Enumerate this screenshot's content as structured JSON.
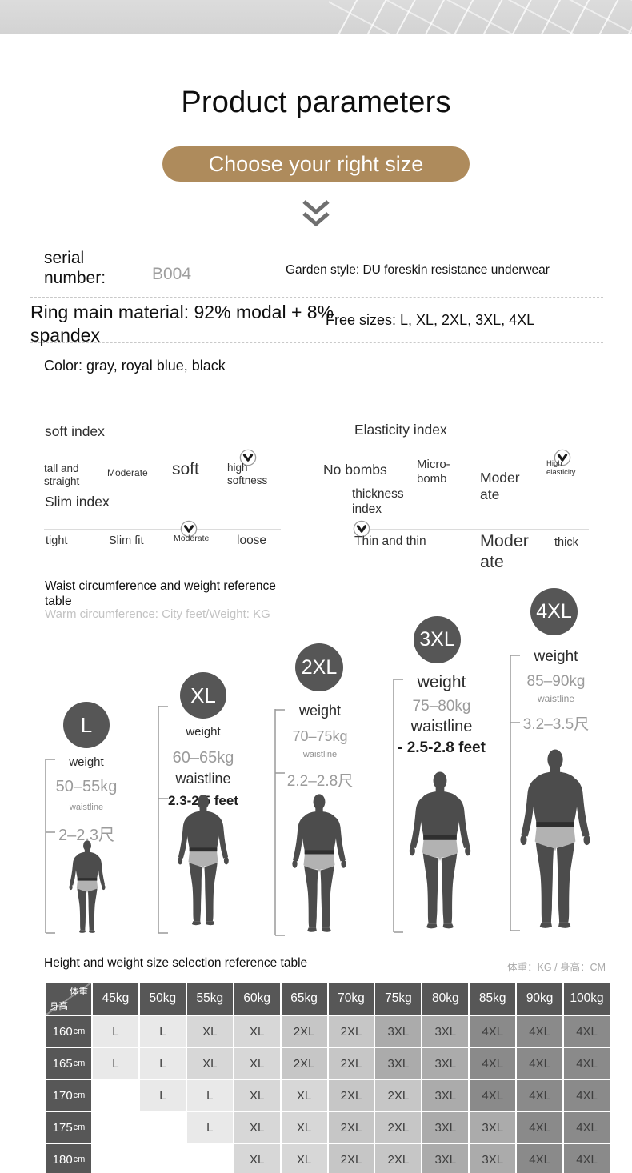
{
  "header": {
    "title": "Product parameters",
    "cta": "Choose your right size"
  },
  "specs": {
    "serial_label": "serial number:",
    "serial_value": "B004",
    "garden_style": "Garden style: DU foreskin resistance underwear",
    "material": "Ring main material: 92% modal + 8% spandex",
    "free_sizes": "Free sizes: L, XL, 2XL, 3XL, 4XL",
    "color": "Color: gray, royal blue, black"
  },
  "indexes": {
    "soft": {
      "title": "soft index",
      "labels": [
        "tall and straight",
        "Moderate",
        "soft",
        "high softness"
      ],
      "marker_index": 3,
      "marker_value": "high softness"
    },
    "elasticity": {
      "title": "Elasticity index",
      "labels": [
        "No bombs",
        "Micro-bomb",
        "Moderate",
        "High elasticity"
      ],
      "marker_index": 3,
      "marker_value": "High elasticity"
    },
    "slim": {
      "title": "Slim index",
      "labels": [
        "tight",
        "Slim fit",
        "Moderate",
        "loose"
      ],
      "marker_index": 2,
      "marker_value": "Moderate"
    },
    "thickness": {
      "title": "thickness index",
      "labels": [
        "Thin and thin",
        "Moderate",
        "thick"
      ],
      "marker_index": 0,
      "marker_value": "Thin and thin"
    }
  },
  "waist_section": {
    "title": "Waist circumference and weight reference table",
    "subtitle": "Warm circumference: City feet/Weight: KG"
  },
  "figures": [
    {
      "size": "L",
      "weight_label": "weight",
      "weight": "50–55kg",
      "waist_label": "waistline",
      "waist": "2–2.3尺"
    },
    {
      "size": "XL",
      "weight_label": "weight",
      "weight": "60–65kg",
      "waist_label": "waistline",
      "waist": "2.3-2.5 feet"
    },
    {
      "size": "2XL",
      "weight_label": "weight",
      "weight": "70–75kg",
      "waist_label": "waistline",
      "waist": "2.2–2.8尺"
    },
    {
      "size": "3XL",
      "weight_label": "weight",
      "weight": "75–80kg",
      "waist_label": "waistline",
      "waist": "- 2.5-2.8 feet"
    },
    {
      "size": "4XL",
      "weight_label": "weight",
      "weight": "85–90kg",
      "waist_label": "waistline",
      "waist": "3.2–3.5尺"
    }
  ],
  "size_table": {
    "title": "Height and weight size selection reference table",
    "unit_note": "体重：KG / 身高：CM",
    "corner": {
      "top": "体重",
      "bottom": "身高"
    },
    "columns": [
      "45kg",
      "50kg",
      "55kg",
      "60kg",
      "65kg",
      "70kg",
      "75kg",
      "80kg",
      "85kg",
      "90kg",
      "100kg"
    ],
    "rows": [
      {
        "height": "160cm",
        "cells": [
          "L",
          "L",
          "XL",
          "XL",
          "2XL",
          "2XL",
          "3XL",
          "3XL",
          "4XL",
          "4XL",
          "4XL"
        ]
      },
      {
        "height": "165cm",
        "cells": [
          "L",
          "L",
          "XL",
          "XL",
          "2XL",
          "2XL",
          "3XL",
          "3XL",
          "4XL",
          "4XL",
          "4XL"
        ]
      },
      {
        "height": "170cm",
        "cells": [
          "",
          "L",
          "L",
          "XL",
          "XL",
          "2XL",
          "2XL",
          "3XL",
          "4XL",
          "4XL",
          "4XL"
        ]
      },
      {
        "height": "175cm",
        "cells": [
          "",
          "",
          "L",
          "XL",
          "XL",
          "2XL",
          "2XL",
          "3XL",
          "3XL",
          "4XL",
          "4XL"
        ]
      },
      {
        "height": "180cm",
        "cells": [
          "",
          "",
          "",
          "XL",
          "XL",
          "2XL",
          "2XL",
          "3XL",
          "3XL",
          "4XL",
          "4XL"
        ]
      }
    ],
    "size_colors": {
      "L": "#e9e9e9",
      "XL": "#d7d7d7",
      "2XL": "#c6c6c6",
      "3XL": "#ababab",
      "4XL": "#8a8a8a",
      "": "#ffffff"
    }
  },
  "colors": {
    "accent_pill": "#ae8b5c",
    "badge": "#565656",
    "table_header": "#575757",
    "silhouette": "#4c4c4c",
    "shorts": "#b2b2b2"
  }
}
